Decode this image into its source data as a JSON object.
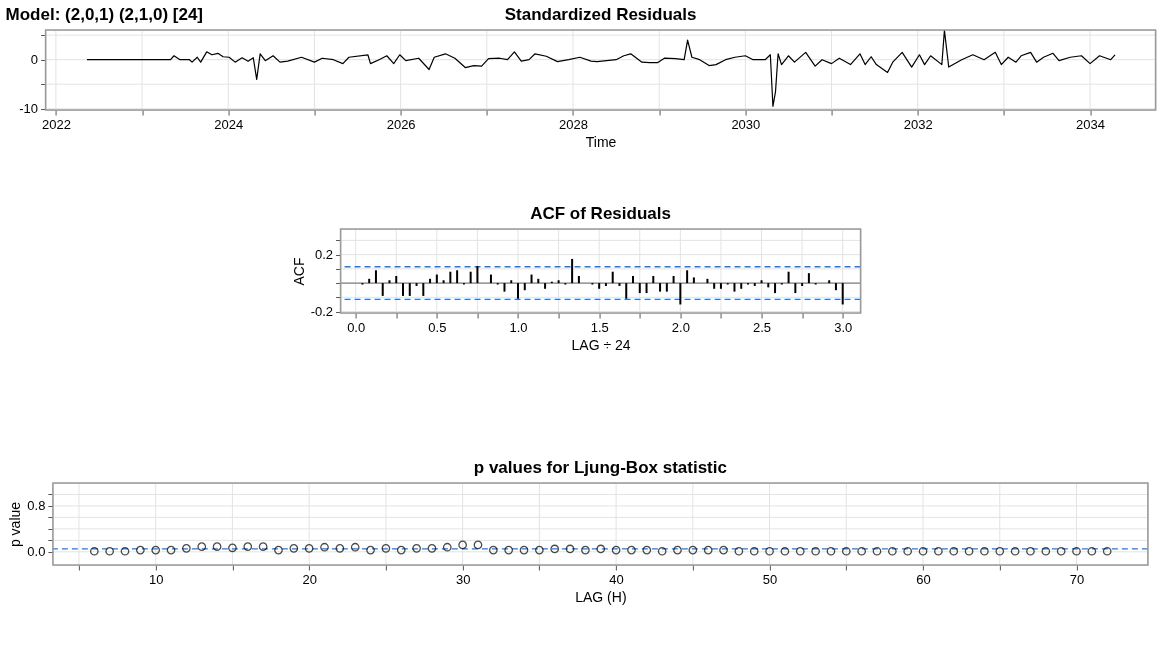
{
  "chart_data": [
    {
      "type": "line",
      "title": "Standardized Residuals",
      "annotations": [
        "Model: (2,0,1) (2,1,0) [24]"
      ],
      "xlabel": "Time",
      "grid": true,
      "line_style": "solid",
      "xlim": [
        2021.88,
        2034.76
      ],
      "xticks": [
        2022,
        {
          "value": 2023,
          "label": null
        },
        2024,
        {
          "value": 2025,
          "label": null
        },
        2026,
        {
          "value": 2027,
          "label": null
        },
        2028,
        {
          "value": 2029,
          "label": null
        },
        2030,
        {
          "value": 2031,
          "label": null
        },
        2032,
        {
          "value": 2033,
          "label": null
        },
        2034
      ],
      "ylim": [
        -10.25,
        6.05
      ],
      "yticks": [
        {
          "value": 5,
          "label": null
        },
        0,
        {
          "value": -5,
          "label": null
        },
        -10
      ],
      "x": [
        2022.36,
        2023.33,
        2023.37,
        2023.44,
        2023.55,
        2023.58,
        2023.64,
        2023.68,
        2023.75,
        2023.81,
        2023.88,
        2023.94,
        2024.01,
        2024.08,
        2024.16,
        2024.23,
        2024.29,
        2024.33,
        2024.37,
        2024.43,
        2024.52,
        2024.6,
        2024.69,
        2024.85,
        2025.0,
        2025.09,
        2025.22,
        2025.33,
        2025.4,
        2025.62,
        2025.65,
        2025.75,
        2025.84,
        2025.92,
        2025.99,
        2026.06,
        2026.21,
        2026.33,
        2026.39,
        2026.52,
        2026.63,
        2026.75,
        2026.85,
        2026.94,
        2027.02,
        2027.15,
        2027.24,
        2027.32,
        2027.4,
        2027.49,
        2027.56,
        2027.69,
        2027.82,
        2027.95,
        2028.08,
        2028.21,
        2028.28,
        2028.5,
        2028.59,
        2028.67,
        2028.8,
        2028.89,
        2028.98,
        2029.06,
        2029.19,
        2029.29,
        2029.33,
        2029.38,
        2029.47,
        2029.58,
        2029.66,
        2029.77,
        2029.88,
        2030.0,
        2030.09,
        2030.23,
        2030.29,
        2030.32,
        2030.35,
        2030.38,
        2030.42,
        2030.5,
        2030.57,
        2030.7,
        2030.81,
        2030.89,
        2031.0,
        2031.09,
        2031.22,
        2031.33,
        2031.39,
        2031.46,
        2031.52,
        2031.65,
        2031.71,
        2031.82,
        2031.93,
        2032.02,
        2032.08,
        2032.15,
        2032.28,
        2032.31,
        2032.36,
        2032.51,
        2032.64,
        2032.77,
        2032.9,
        2032.97,
        2033.05,
        2033.14,
        2033.2,
        2033.31,
        2033.38,
        2033.46,
        2033.57,
        2033.64,
        2033.77,
        2033.9,
        2034.0,
        2034.11,
        2034.24,
        2034.29
      ],
      "series": [
        {
          "color": "#000000",
          "values": [
            0,
            0,
            0.8,
            0,
            0,
            -0.5,
            0.5,
            -0.5,
            1.6,
            1.0,
            1.3,
            0.6,
            0.5,
            -0.5,
            0.4,
            -0.3,
            0.4,
            -4.0,
            1.2,
            -0.2,
            0.8,
            -0.5,
            -0.3,
            0.5,
            -0.5,
            0.3,
            0,
            -0.8,
            0.5,
            1.0,
            -0.8,
            0,
            0.8,
            -0.8,
            1.0,
            -0.2,
            0.3,
            -2.0,
            0.5,
            1.2,
            0.3,
            -1.6,
            -1.2,
            -1.3,
            0.2,
            0.3,
            0,
            1.6,
            -0.3,
            0,
            1.2,
            0.7,
            -0.4,
            0,
            0.5,
            -0.3,
            -0.4,
            0,
            0.8,
            1.2,
            -0.5,
            -0.6,
            -0.6,
            0.3,
            0.2,
            0,
            4.0,
            0.5,
            0,
            -1.2,
            -1.0,
            0,
            0.5,
            0.8,
            0,
            0,
            1.0,
            -9.5,
            -6.5,
            1.2,
            -1.0,
            0.8,
            -0.5,
            1.5,
            -1.3,
            0,
            -0.8,
            0.3,
            -1.0,
            1.2,
            -1.0,
            0.6,
            -1.0,
            -2.6,
            -0.5,
            1.5,
            -1.5,
            1.0,
            -1.0,
            0.8,
            -1.0,
            6.0,
            -1.5,
            0,
            1.0,
            0,
            1.5,
            -1.0,
            0.5,
            -0.5,
            0.8,
            1.5,
            -0.5,
            0.5,
            1.3,
            -0.2,
            0.5,
            0.8,
            -0.8,
            0.8,
            0,
            1.0
          ]
        }
      ]
    },
    {
      "type": "bar",
      "title": "ACF of Residuals",
      "xlabel": "LAG ÷ 24",
      "ylabel": "ACF",
      "grid": true,
      "xlim": [
        -0.093,
        3.11
      ],
      "xticks": [
        {
          "value": 0,
          "label": "0.0"
        },
        {
          "value": 0.25,
          "label": null
        },
        0.5,
        {
          "value": 0.75,
          "label": null
        },
        {
          "value": 1,
          "label": "1.0"
        },
        {
          "value": 1.25,
          "label": null
        },
        1.5,
        {
          "value": 1.75,
          "label": null
        },
        {
          "value": 2,
          "label": "2.0"
        },
        {
          "value": 2.25,
          "label": null
        },
        2.5,
        {
          "value": 2.75,
          "label": null
        },
        {
          "value": 3,
          "label": "3.0"
        }
      ],
      "ylim": [
        -0.21,
        0.38
      ],
      "yticks": [
        -0.2,
        {
          "value": -0.1,
          "label": null
        },
        {
          "value": 0,
          "label": null
        },
        {
          "value": 0.1,
          "label": null
        },
        0.2,
        {
          "value": 0.3,
          "label": null
        }
      ],
      "ref_lines": [
        {
          "axis": "y",
          "value": 0,
          "color": "#808080",
          "line_style": "solid"
        },
        {
          "axis": "y",
          "value": 0.115,
          "color": "#1e7ae6",
          "line_style": "dashed"
        },
        {
          "axis": "y",
          "value": -0.115,
          "color": "#1e7ae6",
          "line_style": "dashed"
        }
      ],
      "x": [
        0.0417,
        0.0833,
        0.125,
        0.1667,
        0.2083,
        0.25,
        0.2917,
        0.3333,
        0.375,
        0.4167,
        0.4583,
        0.5,
        0.5417,
        0.5833,
        0.625,
        0.6667,
        0.7083,
        0.75,
        0.7917,
        0.8333,
        0.875,
        0.9167,
        0.9583,
        1.0,
        1.0417,
        1.0833,
        1.125,
        1.1667,
        1.2083,
        1.25,
        1.2917,
        1.3333,
        1.375,
        1.4167,
        1.4583,
        1.5,
        1.5417,
        1.5833,
        1.625,
        1.6667,
        1.7083,
        1.75,
        1.7917,
        1.8333,
        1.875,
        1.9167,
        1.9583,
        2.0,
        2.0417,
        2.0833,
        2.125,
        2.1667,
        2.2083,
        2.25,
        2.2917,
        2.3333,
        2.375,
        2.4167,
        2.4583,
        2.5,
        2.5417,
        2.5833,
        2.625,
        2.6667,
        2.7083,
        2.75,
        2.7917,
        2.8333,
        2.875,
        2.9167,
        2.9583,
        3.0
      ],
      "series": [
        {
          "color": "#000000",
          "values": [
            -0.01,
            0.03,
            0.09,
            -0.09,
            0.02,
            0.05,
            -0.09,
            -0.09,
            -0.02,
            -0.09,
            0.03,
            0.06,
            0.02,
            0.08,
            0.09,
            -0.01,
            0.08,
            0.12,
            0.0,
            0.06,
            -0.01,
            -0.06,
            0.02,
            -0.11,
            -0.05,
            0.06,
            0.03,
            -0.04,
            0.01,
            0.02,
            -0.01,
            0.17,
            0.05,
            0.0,
            -0.01,
            -0.04,
            -0.02,
            0.08,
            -0.02,
            -0.11,
            0.05,
            -0.07,
            -0.07,
            0.05,
            -0.06,
            -0.06,
            0.05,
            -0.15,
            0.09,
            0.04,
            0.0,
            0.03,
            -0.04,
            -0.04,
            -0.01,
            -0.06,
            -0.04,
            -0.01,
            -0.02,
            0.02,
            -0.03,
            -0.07,
            -0.01,
            0.08,
            -0.07,
            -0.02,
            0.07,
            -0.01,
            0.0,
            0.02,
            -0.05,
            -0.15
          ]
        }
      ]
    },
    {
      "type": "scatter",
      "title": "p values for Ljung-Box statistic",
      "xlabel": "LAG (H)",
      "ylabel": "p value",
      "grid": true,
      "marker": "circle",
      "xlim": [
        3.3,
        74.65
      ],
      "xticks": [
        {
          "value": 5,
          "label": null
        },
        10,
        {
          "value": 15,
          "label": null
        },
        20,
        {
          "value": 25,
          "label": null
        },
        30,
        {
          "value": 35,
          "label": null
        },
        40,
        {
          "value": 45,
          "label": null
        },
        50,
        {
          "value": 55,
          "label": null
        },
        60,
        {
          "value": 65,
          "label": null
        },
        70
      ],
      "ylim": [
        -0.23,
        1.2
      ],
      "yticks": [
        {
          "value": 0,
          "label": "0.0"
        },
        {
          "value": 0.2,
          "label": null
        },
        {
          "value": 0.4,
          "label": null
        },
        {
          "value": 0.6,
          "label": null
        },
        0.8,
        {
          "value": 1.0,
          "label": null
        }
      ],
      "ref_lines": [
        {
          "axis": "y",
          "value": 0.05,
          "color": "#1e7ae6",
          "line_style": "dashed"
        }
      ],
      "x": [
        6,
        7,
        8,
        9,
        10,
        11,
        12,
        13,
        14,
        15,
        16,
        17,
        18,
        19,
        20,
        21,
        22,
        23,
        24,
        25,
        26,
        27,
        28,
        29,
        30,
        31,
        32,
        33,
        34,
        35,
        36,
        37,
        38,
        39,
        40,
        41,
        42,
        43,
        44,
        45,
        46,
        47,
        48,
        49,
        50,
        51,
        52,
        53,
        54,
        55,
        56,
        57,
        58,
        59,
        60,
        61,
        62,
        63,
        64,
        65,
        66,
        67,
        68,
        69,
        70,
        71,
        72
      ],
      "series": [
        {
          "color": "#000000",
          "values": [
            0.01,
            0.01,
            0.01,
            0.03,
            0.03,
            0.03,
            0.06,
            0.09,
            0.09,
            0.07,
            0.09,
            0.09,
            0.03,
            0.06,
            0.06,
            0.08,
            0.06,
            0.08,
            0.03,
            0.06,
            0.03,
            0.06,
            0.06,
            0.08,
            0.12,
            0.12,
            0.03,
            0.03,
            0.03,
            0.03,
            0.05,
            0.05,
            0.03,
            0.05,
            0.03,
            0.03,
            0.03,
            0.01,
            0.03,
            0.03,
            0.03,
            0.03,
            0.01,
            0.01,
            0.01,
            0.01,
            0.01,
            0.01,
            0.01,
            0.01,
            0.01,
            0.01,
            0.01,
            0.01,
            0.01,
            0.01,
            0.01,
            0.01,
            0.01,
            0.01,
            0.01,
            0.01,
            0.01,
            0.01,
            0.01,
            0.01,
            0.01
          ]
        }
      ]
    }
  ]
}
